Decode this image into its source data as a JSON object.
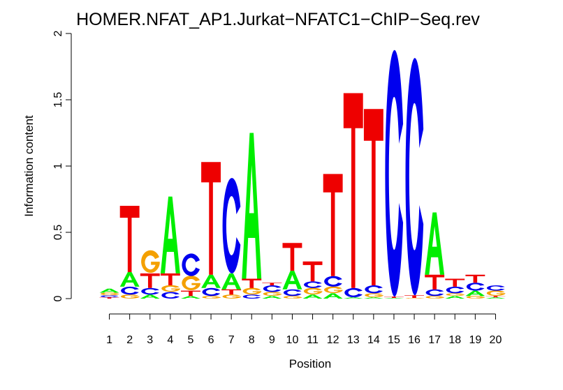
{
  "chart_data": {
    "type": "sequence-logo",
    "title": "HOMER.NFAT_AP1.Jurkat−NFATC1−ChIP−Seq.rev",
    "xlabel": "Position",
    "ylabel": "Information content",
    "ylim": [
      0,
      2
    ],
    "yticks": [
      "0",
      "0.5",
      "1",
      "1.5",
      "2"
    ],
    "x": [
      "1",
      "2",
      "3",
      "4",
      "5",
      "6",
      "7",
      "8",
      "9",
      "10",
      "11",
      "12",
      "13",
      "14",
      "15",
      "16",
      "17",
      "18",
      "19",
      "20"
    ],
    "colors": {
      "A": "#00ee00",
      "C": "#0000ee",
      "G": "#f4a000",
      "T": "#ee0000"
    },
    "positions": [
      {
        "position": 1,
        "stack": [
          [
            "T",
            0.01
          ],
          [
            "C",
            0.015
          ],
          [
            "G",
            0.02
          ],
          [
            "A",
            0.03
          ]
        ]
      },
      {
        "position": 2,
        "stack": [
          [
            "G",
            0.03
          ],
          [
            "C",
            0.06
          ],
          [
            "A",
            0.11
          ],
          [
            "T",
            0.5
          ]
        ]
      },
      {
        "position": 3,
        "stack": [
          [
            "A",
            0.03
          ],
          [
            "C",
            0.05
          ],
          [
            "T",
            0.11
          ],
          [
            "G",
            0.17
          ]
        ]
      },
      {
        "position": 4,
        "stack": [
          [
            "C",
            0.05
          ],
          [
            "G",
            0.05
          ],
          [
            "T",
            0.09
          ],
          [
            "A",
            0.58
          ]
        ]
      },
      {
        "position": 5,
        "stack": [
          [
            "A",
            0.02
          ],
          [
            "T",
            0.04
          ],
          [
            "G",
            0.11
          ],
          [
            "C",
            0.17
          ]
        ]
      },
      {
        "position": 6,
        "stack": [
          [
            "G",
            0.02
          ],
          [
            "C",
            0.06
          ],
          [
            "A",
            0.1
          ],
          [
            "T",
            0.85
          ]
        ]
      },
      {
        "position": 7,
        "stack": [
          [
            "G",
            0.03
          ],
          [
            "T",
            0.04
          ],
          [
            "A",
            0.12
          ],
          [
            "C",
            0.72
          ]
        ]
      },
      {
        "position": 8,
        "stack": [
          [
            "C",
            0.03
          ],
          [
            "G",
            0.05
          ],
          [
            "T",
            0.07
          ],
          [
            "A",
            1.1
          ]
        ]
      },
      {
        "position": 9,
        "stack": [
          [
            "A",
            0.02
          ],
          [
            "G",
            0.03
          ],
          [
            "C",
            0.05
          ],
          [
            "T",
            0.02
          ]
        ]
      },
      {
        "position": 10,
        "stack": [
          [
            "G",
            0.02
          ],
          [
            "C",
            0.05
          ],
          [
            "A",
            0.14
          ],
          [
            "T",
            0.21
          ]
        ]
      },
      {
        "position": 11,
        "stack": [
          [
            "A",
            0.03
          ],
          [
            "G",
            0.05
          ],
          [
            "C",
            0.05
          ],
          [
            "T",
            0.15
          ]
        ]
      },
      {
        "position": 12,
        "stack": [
          [
            "A",
            0.04
          ],
          [
            "G",
            0.05
          ],
          [
            "C",
            0.08
          ],
          [
            "T",
            0.77
          ]
        ]
      },
      {
        "position": 13,
        "stack": [
          [
            "A",
            0.01
          ],
          [
            "C",
            0.07
          ],
          [
            "T",
            1.47
          ]
        ]
      },
      {
        "position": 14,
        "stack": [
          [
            "A",
            0.01
          ],
          [
            "G",
            0.03
          ],
          [
            "C",
            0.06
          ],
          [
            "T",
            1.33
          ]
        ]
      },
      {
        "position": 15,
        "stack": [
          [
            "A",
            0.005
          ],
          [
            "T",
            0.01
          ],
          [
            "C",
            1.86
          ]
        ]
      },
      {
        "position": 16,
        "stack": [
          [
            "G",
            0.005
          ],
          [
            "T",
            0.02
          ],
          [
            "C",
            1.79
          ]
        ]
      },
      {
        "position": 17,
        "stack": [
          [
            "G",
            0.02
          ],
          [
            "C",
            0.05
          ],
          [
            "T",
            0.11
          ],
          [
            "A",
            0.47
          ]
        ]
      },
      {
        "position": 18,
        "stack": [
          [
            "A",
            0.02
          ],
          [
            "G",
            0.02
          ],
          [
            "C",
            0.05
          ],
          [
            "T",
            0.06
          ]
        ]
      },
      {
        "position": 19,
        "stack": [
          [
            "G",
            0.02
          ],
          [
            "A",
            0.04
          ],
          [
            "C",
            0.06
          ],
          [
            "T",
            0.06
          ]
        ]
      },
      {
        "position": 20,
        "stack": [
          [
            "A",
            0.01
          ],
          [
            "T",
            0.01
          ],
          [
            "G",
            0.04
          ],
          [
            "C",
            0.04
          ]
        ]
      }
    ]
  }
}
